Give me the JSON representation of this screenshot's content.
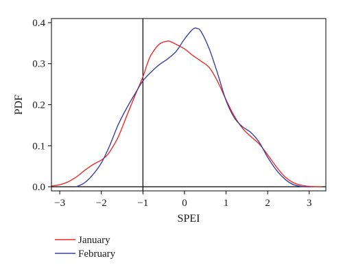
{
  "chart_data": {
    "type": "line",
    "title": "",
    "xlabel": "SPEI",
    "ylabel": "PDF",
    "xlim": [
      -3.2,
      3.4
    ],
    "ylim": [
      -0.01,
      0.41
    ],
    "x_ticks": [
      -3,
      -2,
      -1,
      0,
      1,
      2,
      3
    ],
    "x_tick_labels": [
      "−3",
      "−2",
      "−1",
      "0",
      "1",
      "2",
      "3"
    ],
    "y_ticks": [
      0.0,
      0.1,
      0.2,
      0.3,
      0.4
    ],
    "y_tick_labels": [
      "0.0",
      "0.1",
      "0.2",
      "0.3",
      "0.4"
    ],
    "grid": false,
    "legend_position": "below",
    "reference_lines": {
      "horizontal_y": 0,
      "vertical_x": -1
    },
    "series": [
      {
        "name": "January",
        "color": "#ee2a24",
        "points": [
          [
            -3.2,
            0.002
          ],
          [
            -3.0,
            0.005
          ],
          [
            -2.8,
            0.012
          ],
          [
            -2.6,
            0.024
          ],
          [
            -2.4,
            0.04
          ],
          [
            -2.2,
            0.054
          ],
          [
            -2.0,
            0.065
          ],
          [
            -1.9,
            0.073
          ],
          [
            -1.8,
            0.085
          ],
          [
            -1.6,
            0.12
          ],
          [
            -1.4,
            0.17
          ],
          [
            -1.2,
            0.22
          ],
          [
            -1.0,
            0.268
          ],
          [
            -0.9,
            0.298
          ],
          [
            -0.8,
            0.322
          ],
          [
            -0.6,
            0.348
          ],
          [
            -0.4,
            0.355
          ],
          [
            -0.3,
            0.352
          ],
          [
            -0.2,
            0.347
          ],
          [
            0.0,
            0.336
          ],
          [
            0.2,
            0.32
          ],
          [
            0.4,
            0.306
          ],
          [
            0.6,
            0.29
          ],
          [
            0.8,
            0.256
          ],
          [
            1.0,
            0.212
          ],
          [
            1.2,
            0.172
          ],
          [
            1.4,
            0.142
          ],
          [
            1.6,
            0.122
          ],
          [
            1.8,
            0.104
          ],
          [
            2.0,
            0.078
          ],
          [
            2.2,
            0.05
          ],
          [
            2.4,
            0.026
          ],
          [
            2.6,
            0.011
          ],
          [
            2.8,
            0.004
          ],
          [
            3.0,
            0.001
          ],
          [
            3.3,
            0.0
          ]
        ]
      },
      {
        "name": "February",
        "color": "#3a3fa0",
        "points": [
          [
            -2.6,
            0.0
          ],
          [
            -2.4,
            0.01
          ],
          [
            -2.2,
            0.03
          ],
          [
            -2.0,
            0.058
          ],
          [
            -1.8,
            0.1
          ],
          [
            -1.6,
            0.15
          ],
          [
            -1.4,
            0.19
          ],
          [
            -1.2,
            0.225
          ],
          [
            -1.0,
            0.258
          ],
          [
            -0.8,
            0.28
          ],
          [
            -0.6,
            0.298
          ],
          [
            -0.4,
            0.312
          ],
          [
            -0.2,
            0.33
          ],
          [
            0.0,
            0.36
          ],
          [
            0.2,
            0.384
          ],
          [
            0.3,
            0.386
          ],
          [
            0.4,
            0.378
          ],
          [
            0.6,
            0.335
          ],
          [
            0.8,
            0.275
          ],
          [
            1.0,
            0.21
          ],
          [
            1.2,
            0.168
          ],
          [
            1.4,
            0.146
          ],
          [
            1.6,
            0.132
          ],
          [
            1.8,
            0.108
          ],
          [
            2.0,
            0.072
          ],
          [
            2.2,
            0.042
          ],
          [
            2.4,
            0.02
          ],
          [
            2.6,
            0.006
          ],
          [
            2.8,
            0.001
          ],
          [
            3.0,
            0.0
          ]
        ]
      }
    ]
  }
}
